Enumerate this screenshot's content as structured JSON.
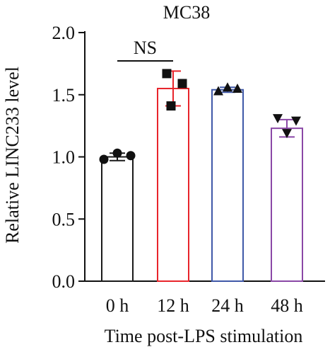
{
  "chart_data": {
    "type": "bar",
    "title": "MC38",
    "xlabel": "Time post-LPS stimulation",
    "ylabel": "Relative LINC233 level",
    "categories": [
      "0 h",
      "12 h",
      "24 h",
      "48 h"
    ],
    "values": [
      1.0,
      1.55,
      1.54,
      1.23
    ],
    "errors": [
      0.03,
      0.14,
      0.02,
      0.07
    ],
    "points": [
      [
        0.98,
        1.03,
        1.01
      ],
      [
        1.67,
        1.41,
        1.59
      ],
      [
        1.53,
        1.56,
        1.55
      ],
      [
        1.31,
        1.19,
        1.29
      ]
    ],
    "markers": [
      "circle",
      "square",
      "triangle-up",
      "triangle-down"
    ],
    "colors": [
      "#1a1a1a",
      "#e8242b",
      "#3f58a8",
      "#8a48a6"
    ],
    "ylim": [
      0,
      2.0
    ],
    "yticks": [
      "0.0",
      "0.5",
      "1.0",
      "1.5",
      "2.0"
    ],
    "annotations": [
      {
        "text": "NS",
        "between": [
          "0 h",
          "12 h"
        ]
      }
    ],
    "grid": false,
    "legend": "none"
  }
}
